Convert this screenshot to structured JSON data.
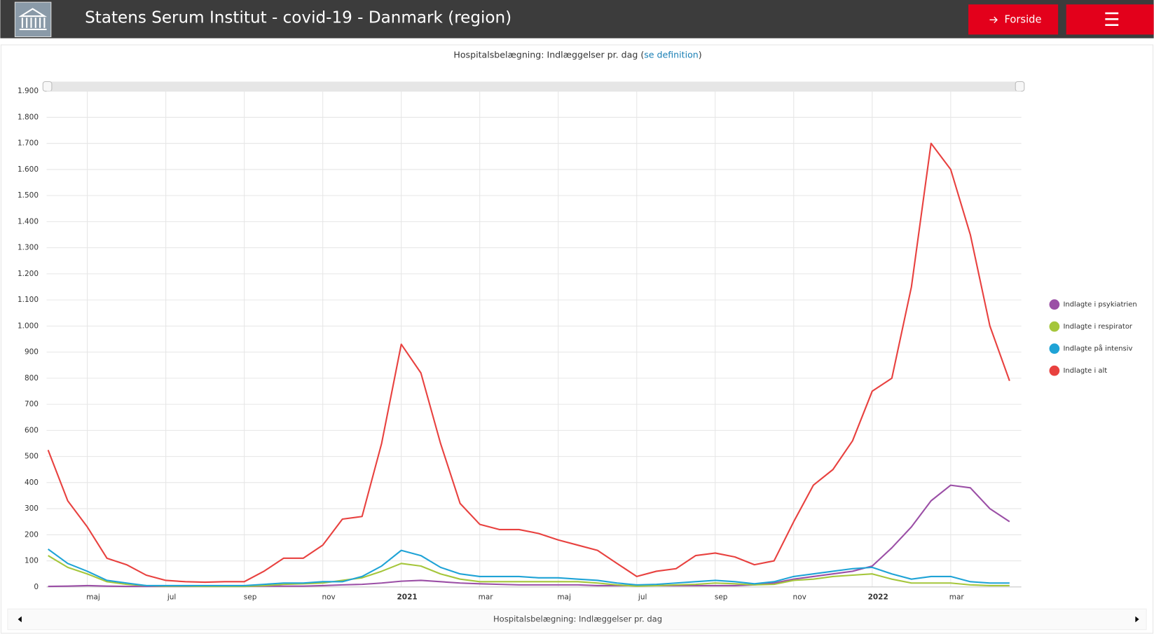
{
  "header": {
    "title": "Statens Serum Institut - covid-19 - Danmark (region)",
    "button": "Forside"
  },
  "chart_data": {
    "type": "line",
    "title_prefix": "Hospitalsbelægning: Indlæggelser pr. dag (",
    "title_link": "se definition",
    "title_suffix": ")",
    "navigator_label": "Hospitalsbelægning: Indlæggelser pr. dag",
    "categories": [
      null,
      null,
      "maj",
      null,
      null,
      null,
      "jul",
      null,
      null,
      null,
      "sep",
      null,
      null,
      null,
      "nov",
      null,
      null,
      null,
      "2021",
      null,
      null,
      null,
      "mar",
      null,
      null,
      null,
      "maj",
      null,
      null,
      null,
      "jul",
      null,
      null,
      null,
      "sep",
      null,
      null,
      null,
      "nov",
      null,
      null,
      null,
      "2022",
      null,
      null,
      null,
      "mar",
      null,
      null,
      null
    ],
    "ylim": [
      0,
      1900
    ],
    "yticks": [
      0,
      100,
      200,
      300,
      400,
      500,
      600,
      700,
      800,
      900,
      {
        "value": 1000,
        "label": "1.000"
      },
      {
        "value": 1100,
        "label": "1.100"
      },
      {
        "value": 1200,
        "label": "1.200"
      },
      {
        "value": 1300,
        "label": "1.300"
      },
      {
        "value": 1400,
        "label": "1.400"
      },
      {
        "value": 1500,
        "label": "1.500"
      },
      {
        "value": 1600,
        "label": "1.600"
      },
      {
        "value": 1700,
        "label": "1.700"
      },
      {
        "value": 1800,
        "label": "1.800"
      },
      {
        "value": 1900,
        "label": "1.900"
      }
    ],
    "grid": true,
    "legend": "right",
    "series": [
      {
        "name": "Indlagte i psykiatrien",
        "color": "#9b4fa6",
        "values": [
          2,
          3,
          5,
          3,
          2,
          2,
          2,
          2,
          2,
          2,
          2,
          3,
          3,
          3,
          5,
          8,
          10,
          15,
          22,
          25,
          20,
          15,
          12,
          10,
          8,
          8,
          8,
          8,
          5,
          5,
          5,
          5,
          5,
          5,
          5,
          5,
          8,
          15,
          30,
          40,
          50,
          60,
          80,
          150,
          230,
          330,
          390,
          380,
          300,
          250
        ]
      },
      {
        "name": "Indlagte i respirator",
        "color": "#a5c63b",
        "values": [
          120,
          75,
          50,
          20,
          10,
          5,
          3,
          3,
          2,
          2,
          2,
          5,
          10,
          12,
          15,
          25,
          35,
          60,
          90,
          80,
          50,
          30,
          20,
          20,
          20,
          20,
          20,
          20,
          15,
          8,
          3,
          5,
          8,
          10,
          15,
          12,
          8,
          10,
          25,
          30,
          40,
          45,
          50,
          30,
          15,
          15,
          15,
          8,
          5,
          5
        ]
      },
      {
        "name": "Indlagte på intensiv",
        "color": "#1fa3d6",
        "values": [
          145,
          90,
          60,
          25,
          15,
          5,
          5,
          5,
          5,
          5,
          5,
          10,
          15,
          15,
          20,
          20,
          40,
          80,
          140,
          120,
          75,
          50,
          40,
          40,
          40,
          35,
          35,
          30,
          25,
          15,
          8,
          10,
          15,
          20,
          25,
          20,
          12,
          20,
          40,
          50,
          60,
          70,
          75,
          50,
          30,
          40,
          40,
          20,
          15,
          15
        ]
      },
      {
        "name": "Indlagte i alt",
        "color": "#e8413f",
        "values": [
          525,
          330,
          230,
          110,
          85,
          45,
          25,
          20,
          18,
          20,
          20,
          60,
          110,
          110,
          160,
          260,
          270,
          550,
          930,
          820,
          550,
          320,
          240,
          220,
          220,
          205,
          180,
          160,
          140,
          90,
          40,
          60,
          70,
          120,
          130,
          115,
          85,
          100,
          250,
          390,
          450,
          560,
          750,
          800,
          1150,
          1700,
          1600,
          1350,
          1000,
          790
        ]
      }
    ]
  }
}
